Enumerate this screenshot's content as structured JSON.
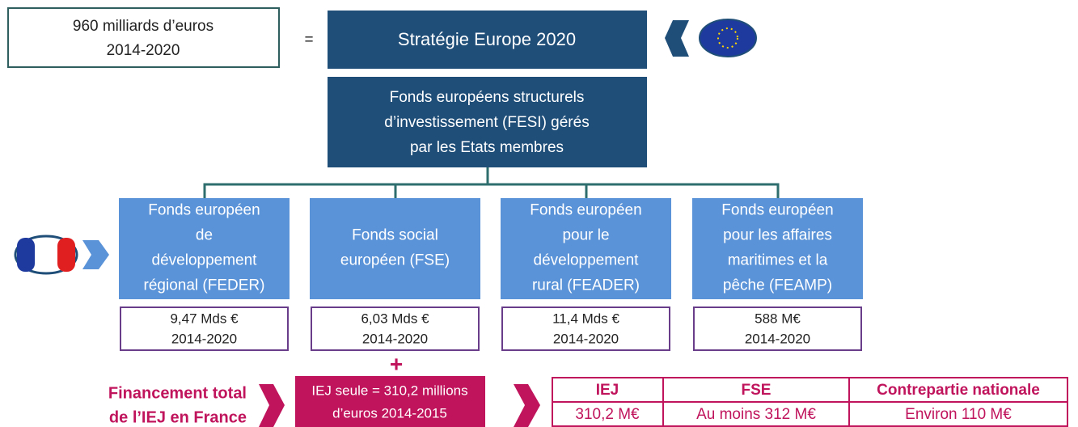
{
  "budget": {
    "lines": [
      "960 milliards d’euros",
      "2014-2020"
    ]
  },
  "equals": "=",
  "strategy": "Stratégie Europe 2020",
  "fesi": {
    "lines": [
      "Fonds européens structurels",
      "d’investissement (FESI) gérés",
      "par les Etats membres"
    ]
  },
  "funds": [
    {
      "name_lines": [
        "Fonds européen",
        "de",
        "développement",
        "régional (FEDER)"
      ],
      "amount": "9,47 Mds €",
      "period": "2014-2020"
    },
    {
      "name_lines": [
        "Fonds social",
        "européen (FSE)"
      ],
      "amount": "6,03 Mds €",
      "period": "2014-2020"
    },
    {
      "name_lines": [
        "Fonds européen",
        "pour le",
        "développement",
        "rural (FEADER)"
      ],
      "amount": "11,4 Mds €",
      "period": "2014-2020"
    },
    {
      "name_lines": [
        "Fonds européen",
        "pour les affaires",
        "maritimes et la",
        "pêche (FEAMP)"
      ],
      "amount": "588 M€",
      "period": "2014-2020"
    }
  ],
  "plus": "+",
  "iej_label": {
    "lines": [
      "Financement total",
      "de l’IEJ en France"
    ]
  },
  "iej_box": {
    "lines": [
      "IEJ seule = 310,2 millions",
      "d’euros 2014-2015"
    ]
  },
  "table": {
    "header": [
      "IEJ",
      "FSE",
      "Contrepartie nationale"
    ],
    "rows": [
      [
        "310,2 M€",
        "Au moins 312 M€",
        "Environ 110 M€"
      ]
    ]
  }
}
